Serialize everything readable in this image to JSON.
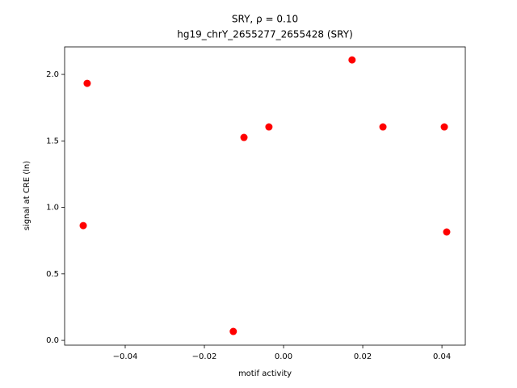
{
  "chart_data": {
    "type": "scatter",
    "title": "SRY, ρ = 0.10",
    "subtitle": "hg19_chrY_2655277_2655428 (SRY)",
    "x_label": "motif activity",
    "y_label": "signal at CRE (ln)",
    "color": "#ff0000",
    "x": [
      -0.0506,
      -0.0496,
      -0.0127,
      -0.01,
      -0.0037,
      0.0173,
      0.0251,
      0.0406,
      0.0412
    ],
    "values": [
      0.863,
      1.933,
      0.067,
      1.526,
      1.605,
      2.109,
      1.605,
      1.605,
      0.815
    ],
    "xlim": [
      -0.0553,
      0.0459
    ],
    "ylim": [
      -0.036,
      2.207
    ],
    "xticks": [
      {
        "value": -0.04,
        "label": "−0.04"
      },
      {
        "value": -0.02,
        "label": "−0.02"
      },
      {
        "value": 0,
        "label": "0.00"
      },
      {
        "value": 0.02,
        "label": "0.02"
      },
      {
        "value": 0.04,
        "label": "0.04"
      }
    ],
    "yticks": [
      {
        "value": 0,
        "label": "0.0"
      },
      {
        "value": 0.5,
        "label": "0.5"
      },
      {
        "value": 1,
        "label": "1.0"
      },
      {
        "value": 1.5,
        "label": "1.5"
      },
      {
        "value": 2,
        "label": "2.0"
      }
    ],
    "grid": false
  }
}
